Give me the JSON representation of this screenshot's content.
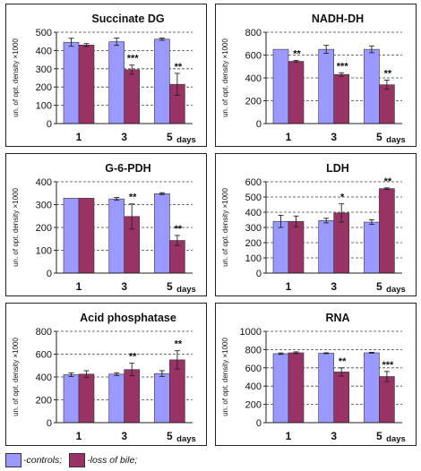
{
  "colors": {
    "controls": "#9999ff",
    "loss_of_bile": "#993366"
  },
  "legend": [
    {
      "label": "-controls;",
      "color": "#9999ff"
    },
    {
      "label": "-loss of bile;",
      "color": "#993366"
    }
  ],
  "chart_data": [
    {
      "type": "bar",
      "title": "Succinate DG",
      "ylabel": "un. of opt. density ×1000",
      "xlabel": "days",
      "categories": [
        "1",
        "3",
        "5"
      ],
      "ylim": [
        0,
        500
      ],
      "yticks": [
        "0",
        "100",
        "200",
        "300",
        "400",
        "500"
      ],
      "series": [
        {
          "name": "-controls;",
          "values": [
            445,
            448,
            462
          ],
          "errors": [
            22,
            20,
            6
          ]
        },
        {
          "name": "-loss of bile;",
          "values": [
            430,
            295,
            215
          ],
          "errors": [
            8,
            25,
            60
          ],
          "sig": [
            "",
            "***",
            "**"
          ]
        }
      ]
    },
    {
      "type": "bar",
      "title": "NADH-DH",
      "ylabel": "un. of opt. density ×1000",
      "xlabel": "days",
      "categories": [
        "1",
        "3",
        "5"
      ],
      "ylim": [
        0,
        800
      ],
      "yticks": [
        "0",
        "200",
        "400",
        "600",
        "800"
      ],
      "series": [
        {
          "name": "-controls;",
          "values": [
            650,
            650,
            650
          ],
          "errors": [
            0,
            35,
            30
          ]
        },
        {
          "name": "-loss of bile;",
          "values": [
            545,
            430,
            340
          ],
          "errors": [
            8,
            15,
            40
          ],
          "sig": [
            "**",
            "***",
            "**"
          ]
        }
      ]
    },
    {
      "type": "bar",
      "title": "G-6-PDH",
      "ylabel": "un. of opt. density ×1000",
      "xlabel": "days",
      "categories": [
        "1",
        "3",
        "5"
      ],
      "ylim": [
        0,
        400
      ],
      "yticks": [
        "0",
        "100",
        "200",
        "300",
        "400"
      ],
      "series": [
        {
          "name": "-controls;",
          "values": [
            328,
            325,
            348
          ],
          "errors": [
            0,
            6,
            4
          ]
        },
        {
          "name": "-loss of bile;",
          "values": [
            328,
            248,
            143
          ],
          "errors": [
            0,
            55,
            22
          ],
          "sig": [
            "",
            "**",
            "**"
          ]
        }
      ]
    },
    {
      "type": "bar",
      "title": "LDH",
      "ylabel": "un. of opt. density ×1000",
      "xlabel": "days",
      "categories": [
        "1",
        "3",
        "5"
      ],
      "ylim": [
        0,
        600
      ],
      "yticks": [
        "0",
        "100",
        "200",
        "300",
        "400",
        "500",
        "600"
      ],
      "series": [
        {
          "name": "-controls;",
          "values": [
            340,
            345,
            335
          ],
          "errors": [
            40,
            15,
            15
          ]
        },
        {
          "name": "-loss of bile;",
          "values": [
            340,
            395,
            555
          ],
          "errors": [
            35,
            60,
            5
          ],
          "sig": [
            "",
            "*",
            "**"
          ]
        }
      ]
    },
    {
      "type": "bar",
      "title": "Acid phosphatase",
      "ylabel": "un. of opt. density ×1000",
      "xlabel": "days",
      "categories": [
        "1",
        "3",
        "5"
      ],
      "ylim": [
        0,
        800
      ],
      "yticks": [
        "0",
        "200",
        "400",
        "600",
        "800"
      ],
      "series": [
        {
          "name": "-controls;",
          "values": [
            420,
            425,
            430
          ],
          "errors": [
            15,
            12,
            25
          ]
        },
        {
          "name": "-loss of bile;",
          "values": [
            425,
            465,
            550
          ],
          "errors": [
            30,
            55,
            80
          ],
          "sig": [
            "",
            "**",
            "**"
          ]
        }
      ]
    },
    {
      "type": "bar",
      "title": "RNA",
      "ylabel": "un. of opt. density ×1000",
      "xlabel": "days",
      "categories": [
        "1",
        "3",
        "5"
      ],
      "ylim": [
        0,
        1000
      ],
      "yticks": [
        "0",
        "200",
        "400",
        "600",
        "800",
        "1000"
      ],
      "series": [
        {
          "name": "-controls;",
          "values": [
            755,
            760,
            765
          ],
          "errors": [
            8,
            5,
            5
          ]
        },
        {
          "name": "-loss of bile;",
          "values": [
            765,
            555,
            505
          ],
          "errors": [
            10,
            45,
            55
          ],
          "sig": [
            "",
            "**",
            "***"
          ]
        }
      ]
    }
  ]
}
